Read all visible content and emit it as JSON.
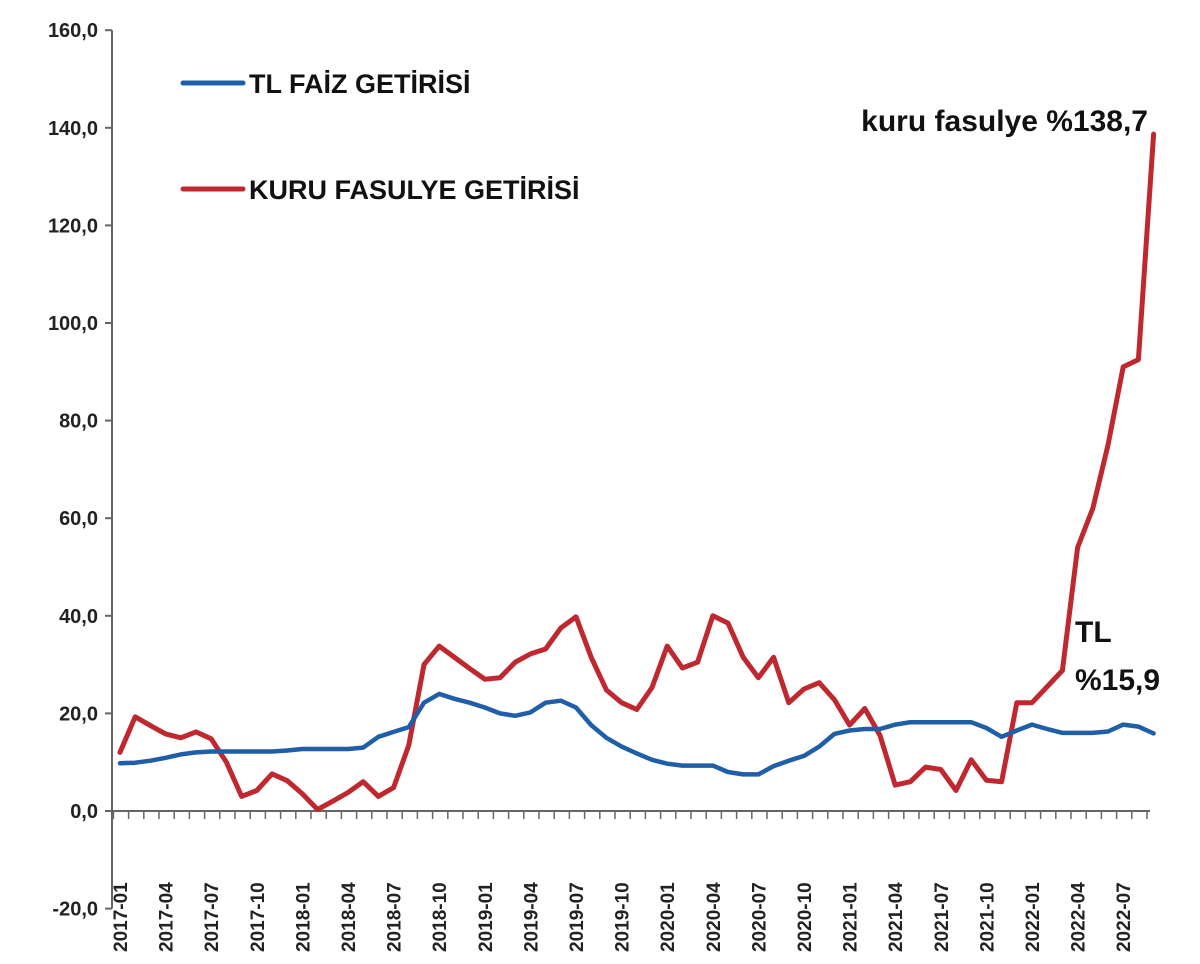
{
  "chart_data": {
    "type": "line",
    "title": "",
    "xlabel": "",
    "ylabel": "",
    "ylim": [
      -20,
      160
    ],
    "yticks": [
      -20,
      0,
      20,
      40,
      60,
      80,
      100,
      120,
      140,
      160
    ],
    "ytick_labels": [
      "-20,0",
      "0,0",
      "20,0",
      "40,0",
      "60,0",
      "80,0",
      "100,0",
      "120,0",
      "140,0",
      "160,0"
    ],
    "x": [
      "2017-01",
      "2017-02",
      "2017-03",
      "2017-04",
      "2017-05",
      "2017-06",
      "2017-07",
      "2017-08",
      "2017-09",
      "2017-10",
      "2017-11",
      "2017-12",
      "2018-01",
      "2018-02",
      "2018-03",
      "2018-04",
      "2018-05",
      "2018-06",
      "2018-07",
      "2018-08",
      "2018-09",
      "2018-10",
      "2018-11",
      "2018-12",
      "2019-01",
      "2019-02",
      "2019-03",
      "2019-04",
      "2019-05",
      "2019-06",
      "2019-07",
      "2019-08",
      "2019-09",
      "2019-10",
      "2019-11",
      "2019-12",
      "2020-01",
      "2020-02",
      "2020-03",
      "2020-04",
      "2020-05",
      "2020-06",
      "2020-07",
      "2020-08",
      "2020-09",
      "2020-10",
      "2020-11",
      "2020-12",
      "2021-01",
      "2021-02",
      "2021-03",
      "2021-04",
      "2021-05",
      "2021-06",
      "2021-07",
      "2021-08",
      "2021-09",
      "2021-10",
      "2021-11",
      "2021-12",
      "2022-01",
      "2022-02",
      "2022-03",
      "2022-04",
      "2022-05",
      "2022-06",
      "2022-07",
      "2022-08",
      "2022-09"
    ],
    "xtick_labels": [
      "2017-01",
      "2017-04",
      "2017-07",
      "2017-10",
      "2018-01",
      "2018-04",
      "2018-07",
      "2018-10",
      "2019-01",
      "2019-04",
      "2019-07",
      "2019-10",
      "2020-01",
      "2020-04",
      "2020-07",
      "2020-10",
      "2021-01",
      "2021-04",
      "2021-07",
      "2021-10",
      "2022-01",
      "2022-04",
      "2022-07"
    ],
    "legend_position": "top-left",
    "grid": false,
    "series": [
      {
        "name": "TL FAİZ GETİRİSİ",
        "color": "#1f5fa8",
        "values": [
          9.8,
          9.9,
          10.3,
          10.9,
          11.6,
          12.0,
          12.2,
          12.2,
          12.2,
          12.2,
          12.2,
          12.4,
          12.7,
          12.7,
          12.7,
          12.7,
          13.0,
          15.2,
          16.2,
          17.2,
          22.2,
          24.0,
          23.0,
          22.2,
          21.2,
          20.0,
          19.5,
          20.2,
          22.2,
          22.6,
          21.2,
          17.6,
          15.0,
          13.2,
          11.8,
          10.5,
          9.7,
          9.3,
          9.3,
          9.3,
          8.0,
          7.5,
          7.5,
          9.2,
          10.3,
          11.3,
          13.2,
          15.8,
          16.5,
          16.8,
          16.8,
          17.7,
          18.2,
          18.2,
          18.2,
          18.2,
          18.2,
          17.0,
          15.2,
          16.5,
          17.7,
          16.8,
          16.0,
          16.0,
          16.0,
          16.3,
          17.7,
          17.3,
          15.9
        ]
      },
      {
        "name": "KURU FASULYE GETİRİSİ",
        "color": "#c0282f",
        "values": [
          12.0,
          19.3,
          17.5,
          15.8,
          15.0,
          16.2,
          14.8,
          10.0,
          3.0,
          4.2,
          7.6,
          6.2,
          3.5,
          0.3,
          2.0,
          3.8,
          6.0,
          3.0,
          4.8,
          13.5,
          30.0,
          33.8,
          31.5,
          29.2,
          27.0,
          27.3,
          30.5,
          32.2,
          33.2,
          37.5,
          39.8,
          31.5,
          24.8,
          22.2,
          20.8,
          25.3,
          33.8,
          29.3,
          30.5,
          40.0,
          38.5,
          31.5,
          27.3,
          31.5,
          22.2,
          25.0,
          26.3,
          22.8,
          17.6,
          21.0,
          15.5,
          5.3,
          6.0,
          9.0,
          8.5,
          4.2,
          10.5,
          6.3,
          6.0,
          22.2,
          22.2,
          25.5,
          28.8,
          54.0,
          62.0,
          75.0,
          91.0,
          92.5,
          138.7
        ]
      }
    ],
    "annotations": [
      {
        "text": "kuru fasulye %138,7"
      },
      {
        "text": "TL"
      },
      {
        "text": "%15,9"
      }
    ]
  }
}
